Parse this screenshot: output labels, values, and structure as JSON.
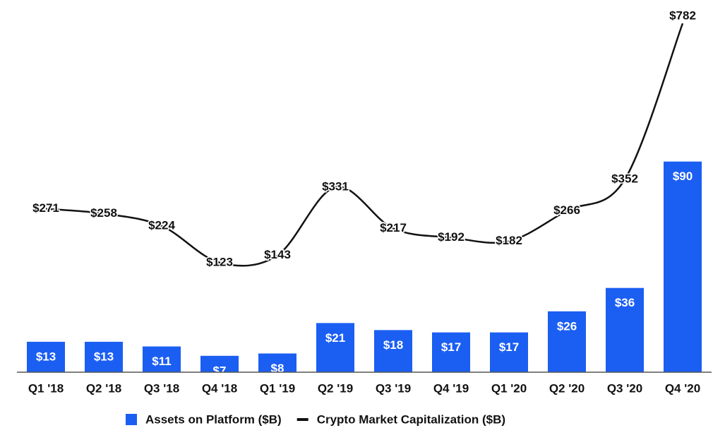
{
  "chart_data": {
    "type": "bar+line",
    "categories": [
      "Q1 '18",
      "Q2 '18",
      "Q3 '18",
      "Q4 '18",
      "Q1 '19",
      "Q2 '19",
      "Q3 '19",
      "Q4 '19",
      "Q1 '20",
      "Q2 '20",
      "Q3 '20",
      "Q4 '20"
    ],
    "series": [
      {
        "name": "Assets on Platform ($B)",
        "type": "bar",
        "color": "#1b5ef2",
        "axis": "y",
        "values": [
          13,
          13,
          11,
          7,
          8,
          21,
          18,
          17,
          17,
          26,
          36,
          90
        ],
        "value_labels": [
          "$13",
          "$13",
          "$11",
          "$7",
          "$8",
          "$21",
          "$18",
          "$17",
          "$17",
          "$26",
          "$36",
          "$90"
        ]
      },
      {
        "name": "Crypto Market Capitalization ($B)",
        "type": "line",
        "color": "#111111",
        "axis": "y2",
        "values": [
          271,
          258,
          224,
          123,
          143,
          331,
          217,
          192,
          182,
          266,
          352,
          782
        ],
        "value_labels": [
          "$271",
          "$258",
          "$224",
          "$123",
          "$143",
          "$331",
          "$217",
          "$192",
          "$182",
          "$266",
          "$352",
          "$782"
        ]
      }
    ],
    "ylim": [
      0,
      156
    ],
    "y2lim": [
      -179,
      827
    ],
    "legend": "bottom"
  }
}
